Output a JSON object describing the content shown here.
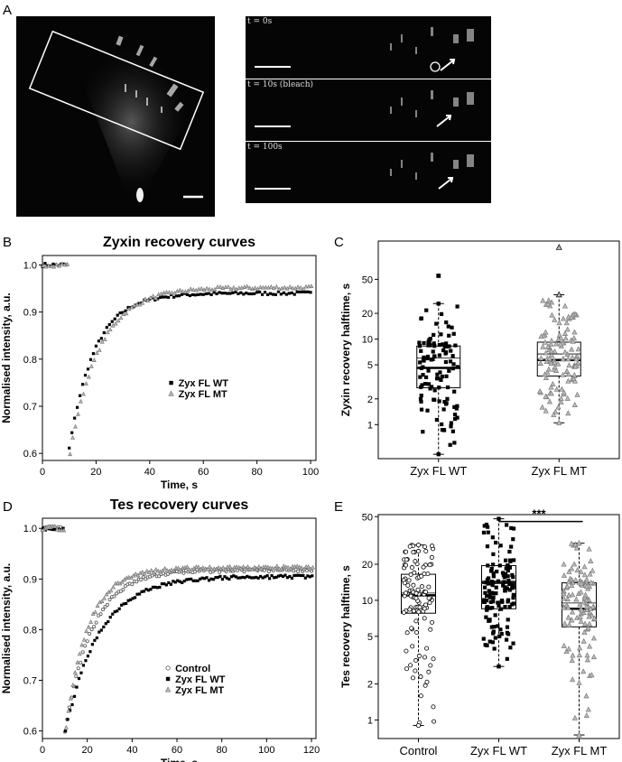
{
  "panel_labels": {
    "a": "A",
    "b": "B",
    "c": "C",
    "d": "D",
    "e": "E"
  },
  "panel_a": {
    "frames": [
      {
        "label": "t = 0s"
      },
      {
        "label": "t = 10s (bleach)"
      },
      {
        "label": "t = 100s"
      }
    ]
  },
  "chart_data": [
    {
      "id": "B",
      "type": "scatter",
      "title": "Zyxin recovery curves",
      "xlabel": "Time, s",
      "ylabel": "Normalised intensity, a.u.",
      "xlim": [
        0,
        102
      ],
      "ylim": [
        0.585,
        1.02
      ],
      "xticks": [
        0,
        20,
        40,
        60,
        80,
        100
      ],
      "yticks": [
        0.6,
        0.7,
        0.8,
        0.9,
        1.0
      ],
      "legend_position": "center-right",
      "bleach_time": 10,
      "series": [
        {
          "name": "Zyx FL WT",
          "marker": "square",
          "color": "#000000",
          "pre": 1.0,
          "min": 0.61,
          "plateau": 0.94,
          "tau": 9.5
        },
        {
          "name": "Zyx FL MT",
          "marker": "triangle",
          "color": "#7a7a7a",
          "pre": 1.0,
          "min": 0.6,
          "plateau": 0.952,
          "tau": 11.0
        }
      ]
    },
    {
      "id": "C",
      "type": "box",
      "title": "",
      "xlabel": "",
      "ylabel": "Zyxin recovery halftime, s",
      "scale": "log",
      "ylim": [
        0.4,
        140
      ],
      "yticks": [
        1,
        2,
        5,
        10,
        20,
        50
      ],
      "categories": [
        "Zyx FL WT",
        "Zyx FL MT"
      ],
      "boxes": [
        {
          "name": "Zyx FL WT",
          "marker": "square",
          "color": "#000000",
          "min": 0.45,
          "q1": 2.7,
          "median": 4.6,
          "mean": 6.0,
          "q3": 8.3,
          "max": 26,
          "outliers": [
            55
          ],
          "n": 110
        },
        {
          "name": "Zyx FL MT",
          "marker": "triangle",
          "color": "#7a7a7a",
          "min": 1.05,
          "q1": 3.7,
          "median": 5.7,
          "mean": 6.7,
          "q3": 9.2,
          "max": 33,
          "outliers": [
            33,
            118
          ],
          "n": 120
        }
      ]
    },
    {
      "id": "D",
      "type": "scatter",
      "title": "Tes recovery curves",
      "xlabel": "Time, s",
      "ylabel": "Normalised intensity, a.u.",
      "xlim": [
        0,
        122
      ],
      "ylim": [
        0.585,
        1.02
      ],
      "xticks": [
        0,
        20,
        40,
        60,
        80,
        100,
        120
      ],
      "yticks": [
        0.6,
        0.7,
        0.8,
        0.9,
        1.0
      ],
      "legend_position": "bottom-center",
      "bleach_time": 10,
      "series": [
        {
          "name": "Control",
          "marker": "circle-open",
          "color": "#555555",
          "pre": 1.0,
          "min": 0.595,
          "plateau": 0.918,
          "tau": 12.0
        },
        {
          "name": "Zyx FL WT",
          "marker": "square",
          "color": "#000000",
          "pre": 1.0,
          "min": 0.6,
          "plateau": 0.905,
          "tau": 15.0
        },
        {
          "name": "Zyx FL MT",
          "marker": "triangle",
          "color": "#7a7a7a",
          "pre": 1.0,
          "min": 0.61,
          "plateau": 0.922,
          "tau": 10.0
        }
      ]
    },
    {
      "id": "E",
      "type": "box",
      "title": "",
      "xlabel": "",
      "ylabel": "Tes recovery halftime, s",
      "scale": "log",
      "ylim": [
        0.7,
        52
      ],
      "yticks": [
        1,
        2,
        5,
        10,
        20,
        50
      ],
      "categories": [
        "Control",
        "Zyx FL WT",
        "Zyx FL MT"
      ],
      "significance": {
        "from": 1,
        "to": 2,
        "label": "***"
      },
      "boxes": [
        {
          "name": "Control",
          "marker": "circle-open",
          "color": "#000000",
          "min": 0.9,
          "q1": 7.8,
          "median": 11.0,
          "mean": 11.5,
          "q3": 16.5,
          "max": 29,
          "outliers": [],
          "n": 110
        },
        {
          "name": "Zyx FL WT",
          "marker": "square",
          "color": "#000000",
          "min": 2.8,
          "q1": 8.5,
          "median": 14.0,
          "mean": 14.5,
          "q3": 19.5,
          "max": 48,
          "outliers": [],
          "n": 130
        },
        {
          "name": "Zyx FL MT",
          "marker": "triangle",
          "color": "#7a7a7a",
          "min": 0.75,
          "q1": 6.0,
          "median": 8.5,
          "mean": 9.5,
          "q3": 14.0,
          "max": 30,
          "outliers": [],
          "n": 120
        }
      ]
    }
  ]
}
